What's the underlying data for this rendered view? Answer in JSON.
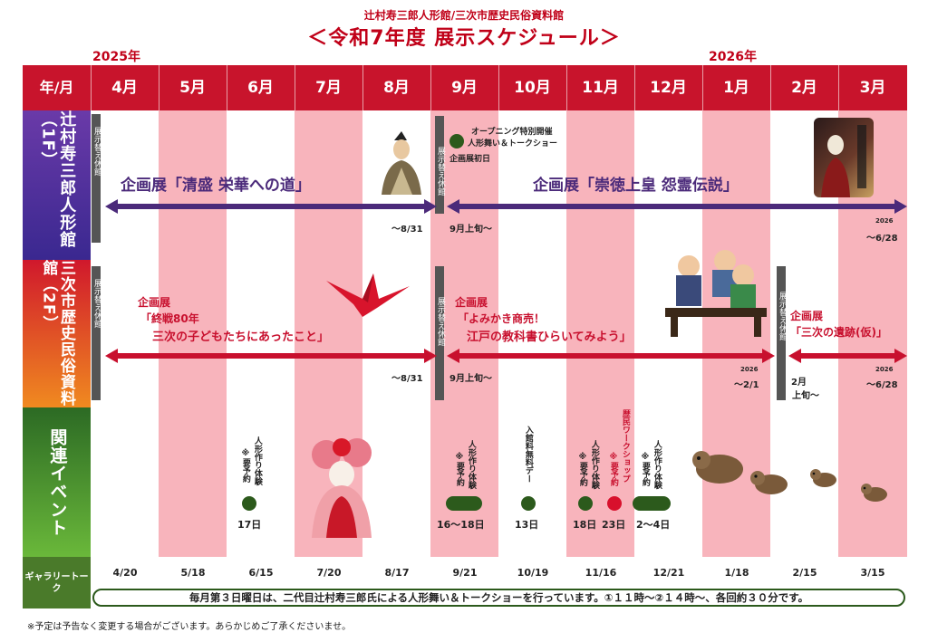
{
  "header": {
    "org": "辻村寿三郎人形館/三次市歴史民俗資料館",
    "title": "＜令和7年度 展示スケジュール＞",
    "year_left": "2025年",
    "year_right": "2026年"
  },
  "months": {
    "corner": "年/月",
    "list": [
      "4月",
      "5月",
      "6月",
      "7月",
      "8月",
      "9月",
      "10月",
      "11月",
      "12月",
      "1月",
      "2月",
      "3月"
    ]
  },
  "rows": {
    "doll_hall": "辻村寿三郎人形館（1F）",
    "museum": "三次市歴史民俗資料館（2F）",
    "events": "関連イベント"
  },
  "closure": "展示替え休館",
  "doll": {
    "ex1_title": "企画展「清盛 栄華への道」",
    "ex1_end": "～8/31",
    "opening_note1": "オープニング特別開催",
    "opening_note2": "人形舞い＆トークショー",
    "opening_day": "企画展初日",
    "ex2_title": "企画展「崇徳上皇 怨霊伝説」",
    "ex2_start": "9月上旬～",
    "ex2_end_year": "2026",
    "ex2_end": "～6/28"
  },
  "museum": {
    "ex1_line1": "企画展",
    "ex1_line2": "「終戦80年",
    "ex1_line3": "三次の子どもたちにあったこと」",
    "ex1_end": "～8/31",
    "ex2_line1": "企画展",
    "ex2_line2": "「よみかき商売！",
    "ex2_line3": "江戸の教科書ひらいてみよう」",
    "ex2_start": "9月上旬～",
    "ex2_end_year": "2026",
    "ex2_end": "～2/1",
    "ex3_line1": "企画展",
    "ex3_line2": "「三次の遺跡(仮)」",
    "ex3_start1": "2月",
    "ex3_start2": "上旬～",
    "ex3_end_year": "2026",
    "ex3_end": "～6/28"
  },
  "events": {
    "doll_making": "人形作り体験",
    "reservation": "※要予約",
    "free_day": "入館料無料デー",
    "workshop": "歴民ワークショップ",
    "d_jun": "17日",
    "d_sep": "16～18日",
    "d_oct": "13日",
    "d_nov1": "18日",
    "d_nov2": "23日",
    "d_dec": "2～4日"
  },
  "gallery": {
    "label": "ギャラリートーク",
    "dates": [
      "4/20",
      "5/18",
      "6/15",
      "7/20",
      "8/17",
      "9/21",
      "10/19",
      "11/16",
      "12/21",
      "1/18",
      "2/15",
      "3/15"
    ],
    "note": "毎月第３日曜日は、二代目辻村寿三郎氏による人形舞い＆トークショーを行っています。①１１時～②１４時～、各回約３０分です。"
  },
  "footer": "※予定は予告なく変更する場合がございます。あらかじめご了承くださいませ。",
  "colors": {
    "header_red": "#c8142c",
    "stripe_pink": "#f8b4bc",
    "doll_purple": "#4b2a7a",
    "museum_red": "#c8102e",
    "event_green": "#2c5a1c"
  }
}
